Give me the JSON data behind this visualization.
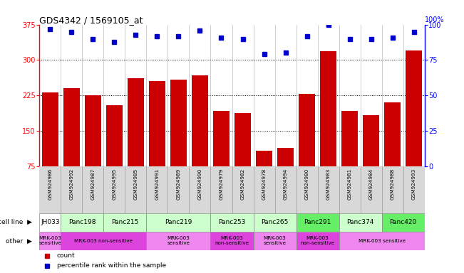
{
  "title": "GDS4342 / 1569105_at",
  "samples": [
    "GSM924986",
    "GSM924992",
    "GSM924987",
    "GSM924995",
    "GSM924985",
    "GSM924991",
    "GSM924989",
    "GSM924990",
    "GSM924979",
    "GSM924982",
    "GSM924978",
    "GSM924994",
    "GSM924980",
    "GSM924983",
    "GSM924981",
    "GSM924984",
    "GSM924988",
    "GSM924993"
  ],
  "counts": [
    232,
    240,
    225,
    205,
    262,
    256,
    258,
    268,
    192,
    188,
    108,
    115,
    228,
    318,
    192,
    183,
    210,
    320
  ],
  "percentiles": [
    97,
    95,
    90,
    88,
    93,
    92,
    92,
    96,
    91,
    90,
    79,
    80,
    92,
    100,
    90,
    90,
    91,
    95
  ],
  "ylim_left": [
    75,
    375
  ],
  "ylim_right": [
    0,
    100
  ],
  "yticks_left": [
    75,
    150,
    225,
    300,
    375
  ],
  "yticks_right": [
    0,
    25,
    50,
    75,
    100
  ],
  "bar_color": "#cc0000",
  "dot_color": "#0000cc",
  "cell_lines": [
    {
      "name": "JH033",
      "start": 0,
      "end": 1,
      "color": "#ffffff"
    },
    {
      "name": "Panc198",
      "start": 1,
      "end": 3,
      "color": "#ccffcc"
    },
    {
      "name": "Panc215",
      "start": 3,
      "end": 5,
      "color": "#ccffcc"
    },
    {
      "name": "Panc219",
      "start": 5,
      "end": 8,
      "color": "#ccffcc"
    },
    {
      "name": "Panc253",
      "start": 8,
      "end": 10,
      "color": "#ccffcc"
    },
    {
      "name": "Panc265",
      "start": 10,
      "end": 12,
      "color": "#ccffcc"
    },
    {
      "name": "Panc291",
      "start": 12,
      "end": 14,
      "color": "#66ee66"
    },
    {
      "name": "Panc374",
      "start": 14,
      "end": 16,
      "color": "#ccffcc"
    },
    {
      "name": "Panc420",
      "start": 16,
      "end": 18,
      "color": "#66ee66"
    }
  ],
  "others": [
    {
      "name": "MRK-003\nsensitive",
      "start": 0,
      "end": 1,
      "color": "#ee88ee"
    },
    {
      "name": "MRK-003 non-sensitive",
      "start": 1,
      "end": 5,
      "color": "#dd44dd"
    },
    {
      "name": "MRK-003\nsensitive",
      "start": 5,
      "end": 8,
      "color": "#ee88ee"
    },
    {
      "name": "MRK-003\nnon-sensitive",
      "start": 8,
      "end": 10,
      "color": "#dd44dd"
    },
    {
      "name": "MRK-003\nsensitive",
      "start": 10,
      "end": 12,
      "color": "#ee88ee"
    },
    {
      "name": "MRK-003\nnon-sensitive",
      "start": 12,
      "end": 14,
      "color": "#dd44dd"
    },
    {
      "name": "MRK-003 sensitive",
      "start": 14,
      "end": 18,
      "color": "#ee88ee"
    }
  ],
  "legend_items": [
    {
      "label": "count",
      "color": "#cc0000"
    },
    {
      "label": "percentile rank within the sample",
      "color": "#0000cc"
    }
  ]
}
